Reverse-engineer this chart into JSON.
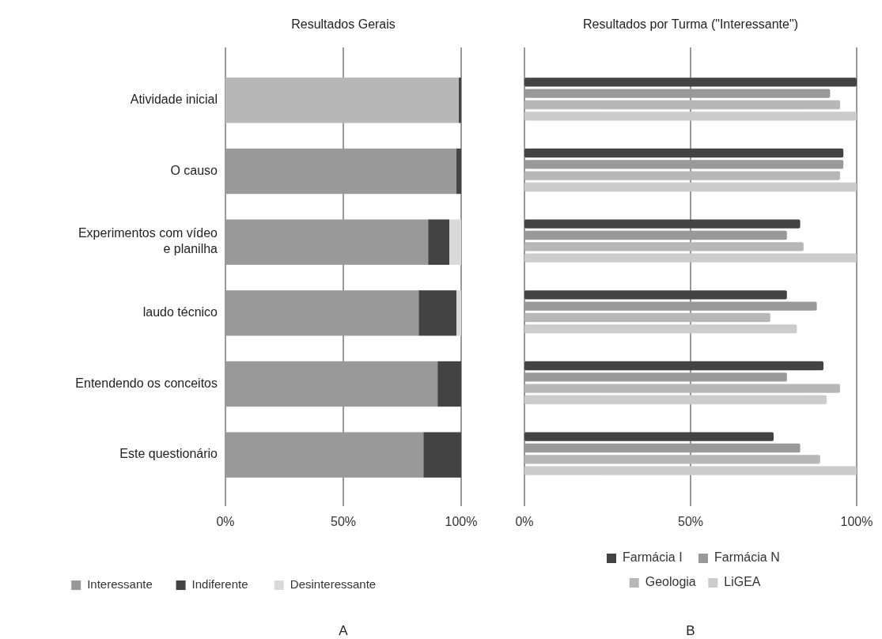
{
  "chart_data": [
    {
      "type": "bar",
      "title": "Resultados Gerais",
      "orientation": "horizontal",
      "stacked": true,
      "categories": [
        "Atividade inicial",
        "O causo",
        "Experimentos com vídeo\ne planilha",
        "laudo técnico",
        "Entendendo os conceitos",
        "Este questionário"
      ],
      "series": [
        {
          "name": "Interessante",
          "color": "#999999",
          "colors": [
            "#b7b7b7",
            "#999999",
            "#999999",
            "#999999",
            "#999999",
            "#999999"
          ],
          "values": [
            99,
            98,
            86,
            82,
            90,
            84
          ]
        },
        {
          "name": "Indiferente",
          "color": "#434343",
          "values": [
            1,
            2,
            9,
            16,
            10,
            16
          ]
        },
        {
          "name": "Desinteressante",
          "color": "#d9d9d9",
          "values": [
            0,
            0,
            5,
            2,
            0,
            0
          ]
        }
      ],
      "xlim": [
        0,
        100
      ],
      "xticks": [
        {
          "value": 0,
          "label": "0%"
        },
        {
          "value": 50,
          "label": "50%"
        },
        {
          "value": 100,
          "label": "100%"
        }
      ],
      "grid": "x",
      "legend": "bottom",
      "annotations": [
        "A"
      ]
    },
    {
      "type": "bar",
      "title": "Resultados por Turma (\"Interessante\")",
      "orientation": "horizontal",
      "categories": [
        null,
        null,
        null,
        null,
        null,
        null
      ],
      "series": [
        {
          "name": "Farmácia I",
          "color": "#434343",
          "values": [
            100,
            96,
            83,
            79,
            90,
            75
          ]
        },
        {
          "name": "Farmácia N",
          "color": "#999999",
          "values": [
            92,
            96,
            79,
            88,
            79,
            83
          ]
        },
        {
          "name": "Geologia",
          "color": "#b7b7b7",
          "values": [
            95,
            95,
            84,
            74,
            95,
            89
          ]
        },
        {
          "name": "LiGEA",
          "color": "#cccccc",
          "values": [
            100,
            100,
            100,
            82,
            91,
            100
          ]
        }
      ],
      "xlim": [
        0,
        100
      ],
      "xticks": [
        {
          "value": 0,
          "label": "0%"
        },
        {
          "value": 50,
          "label": "50%"
        },
        {
          "value": 100,
          "label": "100%"
        }
      ],
      "grid": "x",
      "legend": "bottom",
      "annotations": [
        "B"
      ]
    }
  ]
}
